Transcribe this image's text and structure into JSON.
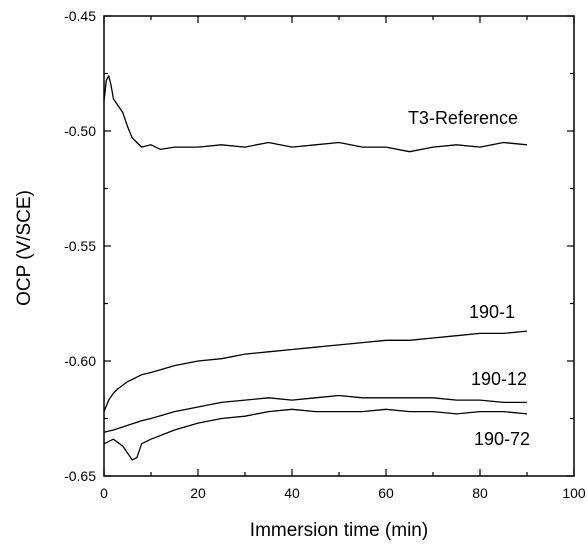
{
  "chart_data": {
    "type": "line",
    "title": "",
    "xlabel": "Immersion time (min)",
    "ylabel": "OCP (V/SCE)",
    "xlim": [
      0,
      100
    ],
    "ylim": [
      -0.65,
      -0.45
    ],
    "xticks": [
      0,
      20,
      40,
      60,
      80,
      100
    ],
    "xtick_labels": [
      "0",
      "20",
      "40",
      "60",
      "80",
      "100"
    ],
    "yticks": [
      -0.65,
      -0.6,
      -0.55,
      -0.5,
      -0.45
    ],
    "ytick_labels": [
      "-0.65",
      "-0.60",
      "-0.55",
      "-0.50",
      "-0.45"
    ],
    "grid": false,
    "series": [
      {
        "name": "T3-Reference",
        "x": [
          0,
          0.5,
          1,
          1.5,
          2,
          3,
          4,
          5,
          6,
          8,
          10,
          12,
          15,
          20,
          25,
          30,
          35,
          40,
          45,
          50,
          55,
          60,
          65,
          70,
          75,
          80,
          85,
          90
        ],
        "y": [
          -0.487,
          -0.478,
          -0.476,
          -0.48,
          -0.486,
          -0.489,
          -0.492,
          -0.498,
          -0.503,
          -0.507,
          -0.506,
          -0.508,
          -0.507,
          -0.507,
          -0.506,
          -0.507,
          -0.505,
          -0.507,
          -0.506,
          -0.505,
          -0.507,
          -0.507,
          -0.509,
          -0.507,
          -0.506,
          -0.507,
          -0.505,
          -0.506
        ]
      },
      {
        "name": "190-1",
        "x": [
          0,
          1,
          2,
          3,
          5,
          8,
          10,
          15,
          20,
          25,
          30,
          35,
          40,
          45,
          50,
          55,
          60,
          65,
          70,
          75,
          80,
          85,
          90
        ],
        "y": [
          -0.622,
          -0.617,
          -0.614,
          -0.612,
          -0.609,
          -0.606,
          -0.605,
          -0.602,
          -0.6,
          -0.599,
          -0.597,
          -0.596,
          -0.595,
          -0.594,
          -0.593,
          -0.592,
          -0.591,
          -0.591,
          -0.59,
          -0.589,
          -0.588,
          -0.588,
          -0.587
        ]
      },
      {
        "name": "190-12",
        "x": [
          0,
          2,
          5,
          8,
          10,
          15,
          20,
          25,
          30,
          35,
          40,
          45,
          50,
          55,
          60,
          65,
          70,
          75,
          80,
          85,
          90
        ],
        "y": [
          -0.631,
          -0.63,
          -0.628,
          -0.626,
          -0.625,
          -0.622,
          -0.62,
          -0.618,
          -0.617,
          -0.616,
          -0.617,
          -0.616,
          -0.615,
          -0.616,
          -0.616,
          -0.616,
          -0.616,
          -0.617,
          -0.617,
          -0.618,
          -0.618
        ]
      },
      {
        "name": "190-72",
        "x": [
          0,
          2,
          4,
          5,
          6,
          7,
          8,
          10,
          15,
          20,
          25,
          30,
          35,
          40,
          45,
          50,
          55,
          60,
          65,
          70,
          75,
          80,
          85,
          90
        ],
        "y": [
          -0.636,
          -0.634,
          -0.637,
          -0.64,
          -0.643,
          -0.642,
          -0.636,
          -0.634,
          -0.63,
          -0.627,
          -0.625,
          -0.624,
          -0.622,
          -0.621,
          -0.622,
          -0.622,
          -0.622,
          -0.621,
          -0.622,
          -0.622,
          -0.623,
          -0.622,
          -0.622,
          -0.623
        ]
      }
    ]
  }
}
